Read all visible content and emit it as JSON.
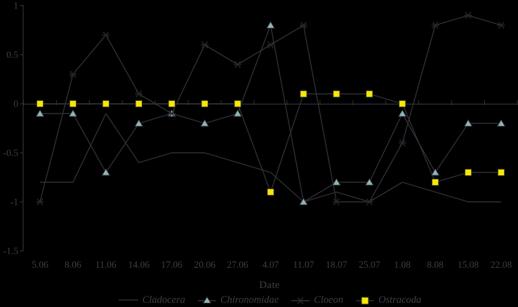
{
  "chart_data": {
    "type": "line",
    "title": "",
    "xlabel": "Date",
    "ylabel": "",
    "ylim": [
      -1.5,
      1
    ],
    "grid": false,
    "legend_position": "bottom",
    "yticks": [
      1,
      0.5,
      0,
      -0.5,
      -1,
      -1.5
    ],
    "ytick_labels": [
      "1",
      "0.5",
      "0",
      "-0.5",
      "-1",
      "-1.5"
    ],
    "categories": [
      "5.06",
      "8.06",
      "11.06",
      "14.06",
      "17.06",
      "20.06",
      "27.06",
      "4.07",
      "11.07",
      "18.07",
      "25.07",
      "1.08",
      "8.08",
      "15.08",
      "22.08"
    ],
    "series": [
      {
        "name": "Cladocera",
        "marker": "none",
        "values": [
          -0.8,
          -0.8,
          -0.1,
          -0.6,
          -0.5,
          -0.5,
          -0.6,
          -0.7,
          -1.0,
          -0.9,
          -1.0,
          -0.8,
          -0.9,
          -1.0,
          -1.0
        ]
      },
      {
        "name": "Chironomidae",
        "marker": "triangle",
        "values": [
          -0.1,
          -0.1,
          -0.7,
          -0.2,
          -0.1,
          -0.2,
          -0.1,
          0.8,
          -1.0,
          -0.8,
          -0.8,
          -0.1,
          -0.7,
          -0.2,
          -0.2
        ]
      },
      {
        "name": "Cloeon",
        "marker": "asterisk",
        "values": [
          -1.0,
          0.3,
          0.7,
          0.1,
          -0.1,
          0.6,
          0.4,
          0.6,
          0.8,
          -1.0,
          -1.0,
          -0.4,
          0.8,
          0.9,
          0.8
        ]
      },
      {
        "name": "Ostracoda",
        "marker": "square",
        "values": [
          0,
          0,
          0,
          0,
          0,
          0,
          0,
          -0.9,
          0.1,
          0.1,
          0.1,
          0,
          -0.8,
          -0.7,
          -0.7
        ]
      }
    ]
  },
  "colors": {
    "background": "#000000",
    "axis": "#32323a",
    "series_line": "#2f2f36",
    "text": "#3e3e46",
    "marker_stroke": "#26262c",
    "triangle_fill": "#8fb5b4",
    "square_fill": "#f7e800"
  }
}
